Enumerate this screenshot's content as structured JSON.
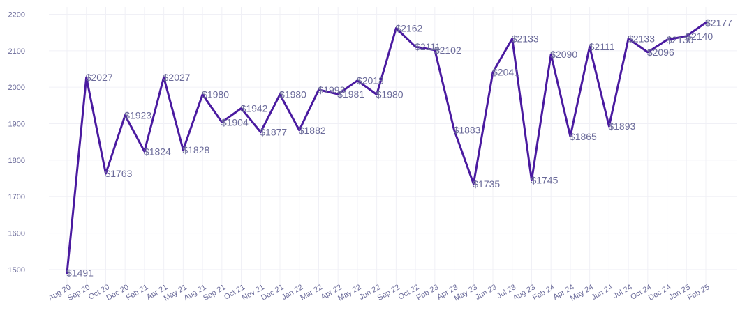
{
  "chart_data": {
    "type": "line",
    "categories": [
      "Aug 20",
      "Sep 20",
      "Oct 20",
      "Dec 20",
      "Feb 21",
      "Apr 21",
      "May 21",
      "Aug 21",
      "Sep 21",
      "Oct 21",
      "Nov 21",
      "Dec 21",
      "Jan 22",
      "Mar 22",
      "Apr 22",
      "May 22",
      "Jun 22",
      "Sep 22",
      "Oct 22",
      "Feb 23",
      "Apr 23",
      "May 23",
      "Jun 23",
      "Jul 23",
      "Aug 23",
      "Feb 24",
      "Apr 24",
      "May 24",
      "Jun 24",
      "Jul 24",
      "Oct 24",
      "Dec 24",
      "Jan 25",
      "Feb 25"
    ],
    "series": [
      {
        "values": [
          1491,
          2027,
          1763,
          1923,
          1824,
          2027,
          1828,
          1980,
          1904,
          1942,
          1877,
          1980,
          1882,
          1993,
          1981,
          2018,
          1980,
          2162,
          2111,
          2102,
          1883,
          1735,
          2041,
          2133,
          1745,
          2090,
          1865,
          2111,
          1893,
          2133,
          2096,
          2130,
          2140,
          2177
        ],
        "labels": [
          "$1491",
          "$2027",
          "$1763",
          "$1923",
          "$1824",
          "$2027",
          "$1828",
          "$1980",
          "$1904",
          "$1942",
          "$1877",
          "$1980",
          "$1882",
          "$1993",
          "$1981",
          "$2018",
          "$1980",
          "$2162",
          "$2111",
          "$2102",
          "$1883",
          "$1735",
          "$2041",
          "$2133",
          "$1745",
          "$2090",
          "$1865",
          "$2111",
          "$1893",
          "$2133",
          "$2096",
          "$2130",
          "$2140",
          "$2177"
        ],
        "color": "#4a1aa0"
      }
    ],
    "y_ticks": [
      "1500",
      "1600",
      "1700",
      "1800",
      "1900",
      "2000",
      "2100",
      "2200"
    ],
    "ylim": [
      1475,
      2220
    ],
    "grid": true,
    "label_color": "#6b6b9a",
    "grid_color": "#f0f0f6"
  }
}
